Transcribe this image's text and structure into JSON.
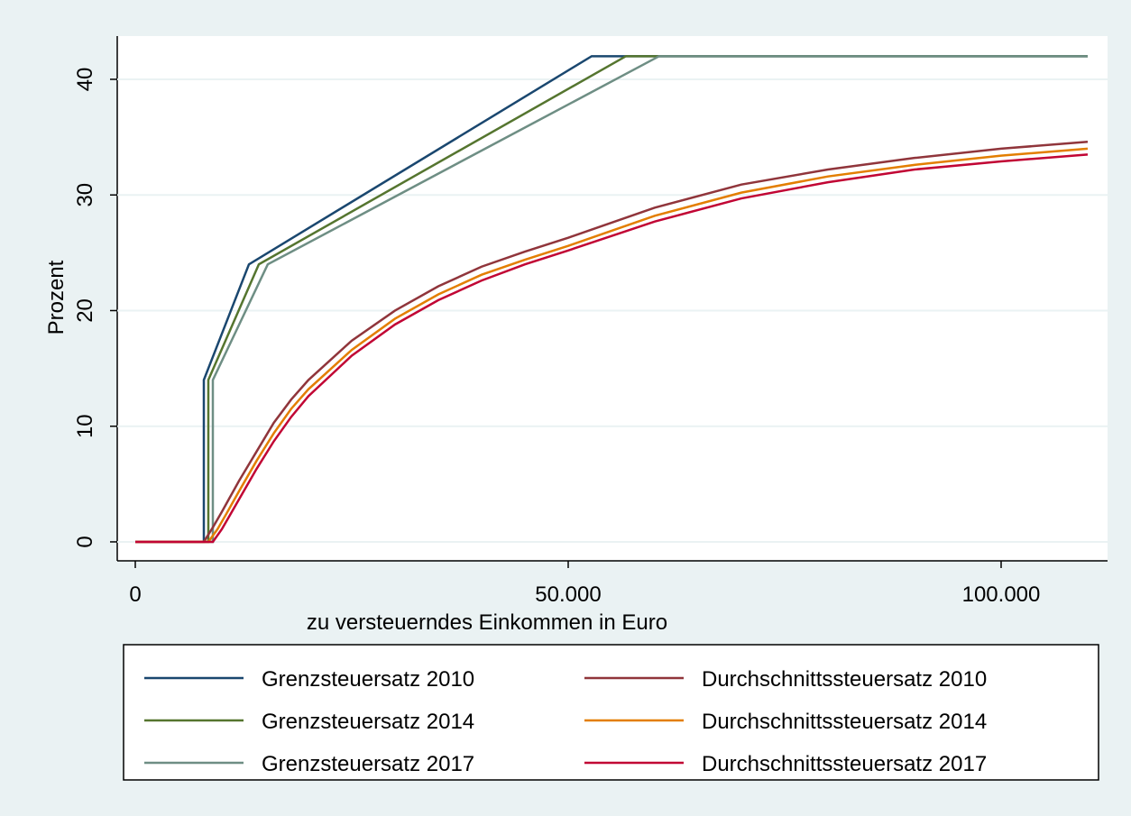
{
  "chart_data": {
    "type": "line",
    "x_label": "zu versteuerndes Einkommen in Euro",
    "y_label": "Prozent",
    "xlim": [
      -2083,
      112292
    ],
    "ylim": [
      -1.64,
      43.74
    ],
    "xticks": [
      {
        "value": 0,
        "label": "0"
      },
      {
        "value": 50000,
        "label": "50.000"
      },
      {
        "value": 100000,
        "label": "100.000"
      }
    ],
    "yticks": [
      0,
      10,
      20,
      30,
      40
    ],
    "grid": true,
    "series": [
      {
        "name": "Grenzsteuersatz 2010",
        "color": "#1a476f",
        "x": [
          0,
          7917,
          7917,
          13125,
          52708,
          110000
        ],
        "values": [
          0,
          0,
          14,
          24,
          42,
          42
        ]
      },
      {
        "name": "Grenzsteuersatz 2014",
        "color": "#55752f",
        "x": [
          0,
          8437,
          8437,
          14270,
          56667,
          110000
        ],
        "values": [
          0,
          0,
          14,
          24,
          42,
          42
        ]
      },
      {
        "name": "Grenzsteuersatz 2017",
        "color": "#6e8e84",
        "x": [
          0,
          8958,
          8958,
          15300,
          60500,
          110000
        ],
        "values": [
          0,
          0,
          14,
          24,
          42,
          42
        ]
      },
      {
        "name": "Durchschnittssteuersatz 2010",
        "color": "#90353b",
        "x": [
          0,
          7917,
          9000,
          10000,
          12000,
          14000,
          16000,
          18000,
          20000,
          25000,
          30000,
          35000,
          40000,
          45000,
          50000,
          60000,
          70000,
          80000,
          90000,
          100000,
          110000
        ],
        "values": [
          0,
          0,
          1.3,
          2.6,
          5.3,
          7.8,
          10.3,
          12.3,
          14.0,
          17.4,
          20.0,
          22.1,
          23.8,
          25.1,
          26.3,
          28.9,
          30.9,
          32.2,
          33.2,
          34.0,
          34.6
        ]
      },
      {
        "name": "Durchschnittssteuersatz 2014",
        "color": "#e37e00",
        "x": [
          0,
          8437,
          9500,
          10500,
          12000,
          14000,
          16000,
          18000,
          20000,
          25000,
          30000,
          35000,
          40000,
          45000,
          50000,
          60000,
          70000,
          80000,
          90000,
          100000,
          110000
        ],
        "values": [
          0,
          0,
          1.1,
          2.4,
          4.4,
          7.0,
          9.4,
          11.5,
          13.2,
          16.6,
          19.3,
          21.4,
          23.1,
          24.4,
          25.6,
          28.2,
          30.2,
          31.6,
          32.6,
          33.4,
          34.0
        ]
      },
      {
        "name": "Durchschnittssteuersatz 2017",
        "color": "#c10534",
        "x": [
          0,
          8958,
          10000,
          12000,
          14000,
          16000,
          18000,
          20000,
          25000,
          30000,
          35000,
          40000,
          45000,
          50000,
          60000,
          70000,
          80000,
          90000,
          100000,
          110000
        ],
        "values": [
          0,
          0,
          1.1,
          3.7,
          6.3,
          8.7,
          10.8,
          12.6,
          16.1,
          18.8,
          20.9,
          22.6,
          24.0,
          25.2,
          27.7,
          29.7,
          31.1,
          32.2,
          32.9,
          33.5
        ]
      }
    ]
  }
}
